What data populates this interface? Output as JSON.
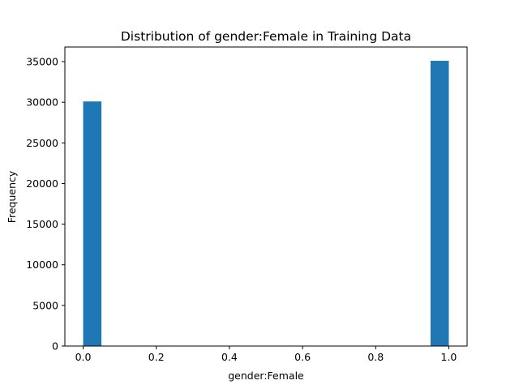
{
  "chart_data": {
    "type": "bar",
    "title": "Distribution of gender:Female in Training Data",
    "xlabel": "gender:Female",
    "ylabel": "Frequency",
    "xlim": [
      -0.05,
      1.05
    ],
    "ylim": [
      0,
      36800
    ],
    "xticks": [
      0.0,
      0.2,
      0.4,
      0.6,
      0.8,
      1.0
    ],
    "xtick_labels": [
      "0.0",
      "0.2",
      "0.4",
      "0.6",
      "0.8",
      "1.0"
    ],
    "yticks": [
      0,
      5000,
      10000,
      15000,
      20000,
      25000,
      30000,
      35000
    ],
    "ytick_labels": [
      "0",
      "5000",
      "10000",
      "15000",
      "20000",
      "25000",
      "30000",
      "35000"
    ],
    "bars": [
      {
        "x0": 0.0,
        "x1": 0.05,
        "value": 30100
      },
      {
        "x0": 0.95,
        "x1": 1.0,
        "value": 35100
      }
    ],
    "bar_color": "#1f77b4",
    "grid": false,
    "legend": "none"
  }
}
